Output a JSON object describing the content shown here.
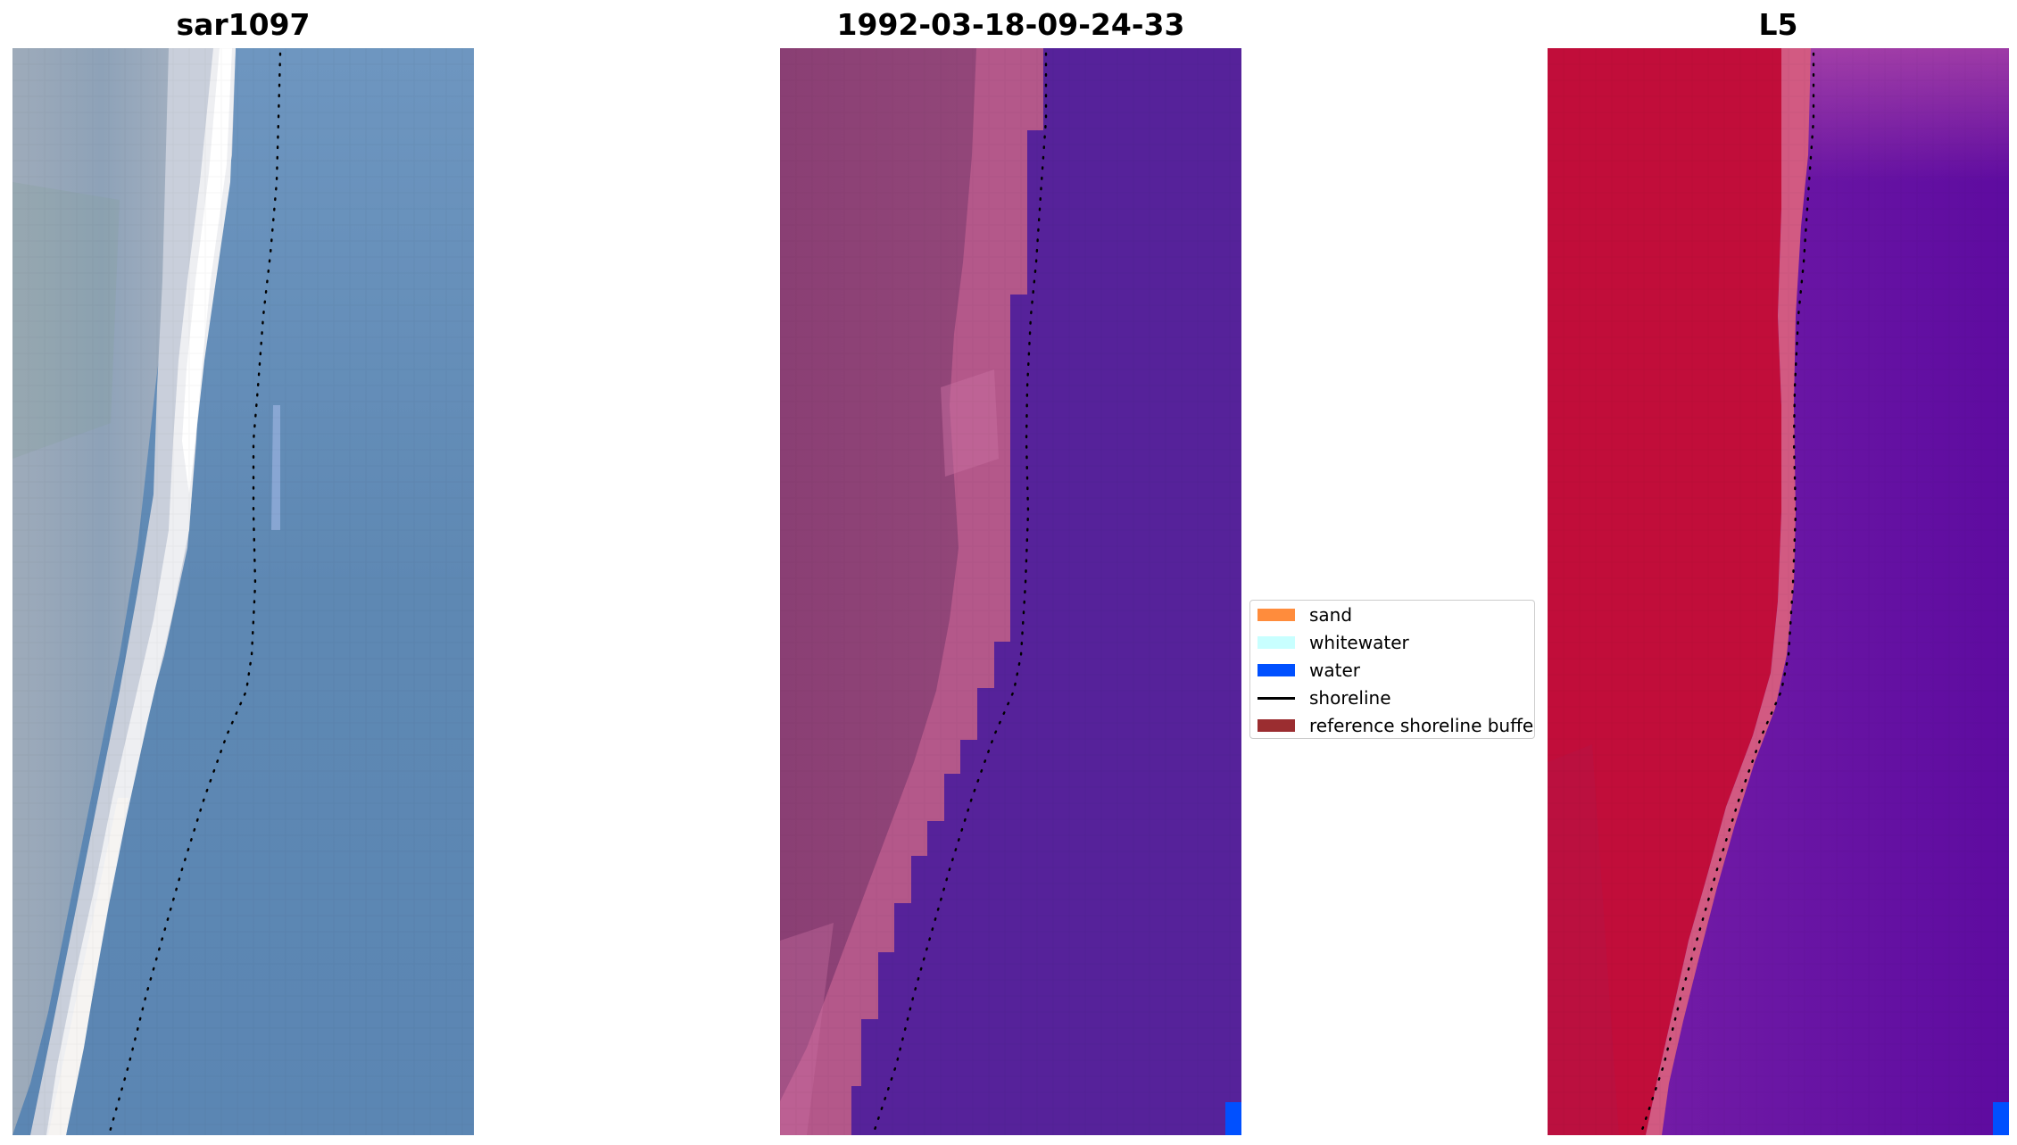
{
  "panels": [
    {
      "title": "sar1097",
      "kind": "rgb-image"
    },
    {
      "title": "1992-03-18-09-24-33",
      "kind": "classified-image"
    },
    {
      "title": "L5",
      "kind": "false-color-image"
    }
  ],
  "legend": {
    "items": [
      {
        "label": "sand",
        "type": "patch",
        "color": "#ff8c3c"
      },
      {
        "label": "whitewater",
        "type": "patch",
        "color": "#c8ffff"
      },
      {
        "label": "water",
        "type": "patch",
        "color": "#0050ff"
      },
      {
        "label": "shoreline",
        "type": "line",
        "color": "#000000"
      },
      {
        "label": "reference shoreline buffer",
        "type": "patch",
        "color": "#9b2d30"
      }
    ]
  },
  "colors": {
    "sar_land": "#93a3b8",
    "sar_water": "#5f88b3",
    "sar_surf": "#f2f2f4",
    "class_land": "#8e4678",
    "class_pink": "#b85c8c",
    "class_water": "#56229a",
    "class_water_mark": "#0050ff",
    "l5_land": "#c10d3a",
    "l5_transition": "#d25a82",
    "l5_water": "#6d16a5",
    "shoreline": "#000000"
  }
}
